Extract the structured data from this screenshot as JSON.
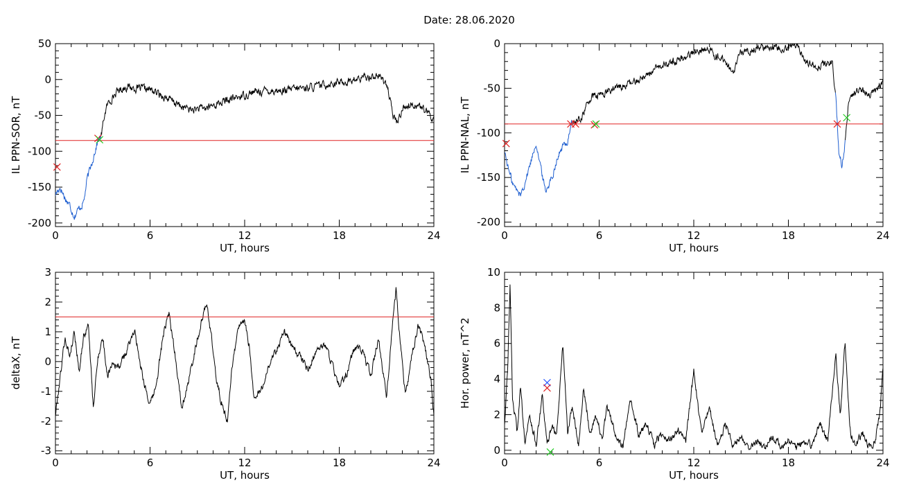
{
  "figure": {
    "title": "Date:  28.06.2020"
  },
  "colors": {
    "background": "#ffffff",
    "axis": "#000000",
    "trace": "#000000",
    "event_trace": "#1f5fd0",
    "threshold": "#e02020",
    "marker_red": "#e02020",
    "marker_green": "#22cc22",
    "marker_blue": "#2050ff"
  },
  "chart_data": [
    {
      "type": "line",
      "id": "il-ppn-sor",
      "xlabel": "UT, hours",
      "ylabel": "IL PPN-SOR, nT",
      "xlim": [
        0,
        24
      ],
      "ylim": [
        -205,
        50
      ],
      "xticks": [
        0,
        6,
        12,
        18,
        24
      ],
      "yticks": [
        -200,
        -150,
        -100,
        -50,
        0,
        50
      ],
      "threshold": -85,
      "anchors": [
        [
          0,
          -160
        ],
        [
          0.3,
          -150
        ],
        [
          0.6,
          -165
        ],
        [
          0.9,
          -175
        ],
        [
          1.2,
          -190
        ],
        [
          1.5,
          -180
        ],
        [
          1.8,
          -170
        ],
        [
          2.0,
          -140
        ],
        [
          2.2,
          -125
        ],
        [
          2.5,
          -100
        ],
        [
          2.7,
          -85
        ],
        [
          2.9,
          -80
        ],
        [
          3.1,
          -50
        ],
        [
          3.3,
          -35
        ],
        [
          3.6,
          -25
        ],
        [
          4.0,
          -15
        ],
        [
          4.5,
          -10
        ],
        [
          5.0,
          -12
        ],
        [
          6.0,
          -14
        ],
        [
          7.0,
          -25
        ],
        [
          8.0,
          -38
        ],
        [
          8.6,
          -42
        ],
        [
          9.5,
          -40
        ],
        [
          10.5,
          -32
        ],
        [
          11.5,
          -25
        ],
        [
          12.5,
          -18
        ],
        [
          13.5,
          -15
        ],
        [
          14.5,
          -16
        ],
        [
          15.5,
          -12
        ],
        [
          16.5,
          -10
        ],
        [
          17.5,
          -5
        ],
        [
          18.5,
          -3
        ],
        [
          19.5,
          2
        ],
        [
          20.0,
          5
        ],
        [
          20.5,
          5
        ],
        [
          21.0,
          -5
        ],
        [
          21.4,
          -50
        ],
        [
          21.7,
          -60
        ],
        [
          22.0,
          -40
        ],
        [
          22.5,
          -35
        ],
        [
          23.0,
          -35
        ],
        [
          23.5,
          -45
        ],
        [
          24.0,
          -55
        ]
      ],
      "event_segments": [
        [
          0,
          2.9
        ]
      ],
      "markers": [
        {
          "x": 2.7,
          "y": -82,
          "color": "marker_red"
        },
        {
          "x": 2.8,
          "y": -84,
          "color": "marker_green"
        },
        {
          "x": 0.1,
          "y": -122,
          "color": "marker_red"
        }
      ]
    },
    {
      "type": "line",
      "id": "il-ppn-nal",
      "xlabel": "UT, hours",
      "ylabel": "IL PPN-NAL, nT",
      "xlim": [
        0,
        24
      ],
      "ylim": [
        -205,
        0
      ],
      "xticks": [
        0,
        6,
        12,
        18,
        24
      ],
      "yticks": [
        -200,
        -150,
        -100,
        -50,
        0
      ],
      "threshold": -90,
      "anchors": [
        [
          0,
          -120
        ],
        [
          0.3,
          -145
        ],
        [
          0.6,
          -160
        ],
        [
          1.0,
          -170
        ],
        [
          1.3,
          -155
        ],
        [
          1.7,
          -130
        ],
        [
          2.0,
          -110
        ],
        [
          2.3,
          -140
        ],
        [
          2.6,
          -165
        ],
        [
          3.0,
          -150
        ],
        [
          3.3,
          -130
        ],
        [
          3.7,
          -115
        ],
        [
          4.0,
          -110
        ],
        [
          4.2,
          -90
        ],
        [
          4.5,
          -88
        ],
        [
          4.8,
          -85
        ],
        [
          5.2,
          -70
        ],
        [
          5.5,
          -60
        ],
        [
          6.0,
          -58
        ],
        [
          7.0,
          -50
        ],
        [
          8.0,
          -45
        ],
        [
          9.0,
          -35
        ],
        [
          10.0,
          -25
        ],
        [
          11.0,
          -18
        ],
        [
          12.0,
          -10
        ],
        [
          12.5,
          -5
        ],
        [
          13.0,
          -8
        ],
        [
          14.0,
          -20
        ],
        [
          14.5,
          -35
        ],
        [
          15.0,
          -10
        ],
        [
          16.0,
          -5
        ],
        [
          17.0,
          -3
        ],
        [
          18.0,
          -4
        ],
        [
          18.6,
          0
        ],
        [
          19.0,
          -20
        ],
        [
          20.0,
          -25
        ],
        [
          20.8,
          -20
        ],
        [
          21.0,
          -60
        ],
        [
          21.2,
          -120
        ],
        [
          21.4,
          -140
        ],
        [
          21.6,
          -110
        ],
        [
          21.8,
          -70
        ],
        [
          22.2,
          -55
        ],
        [
          22.7,
          -50
        ],
        [
          23.2,
          -60
        ],
        [
          23.6,
          -50
        ],
        [
          24.0,
          -45
        ]
      ],
      "event_segments": [
        [
          0,
          4.3
        ],
        [
          21.0,
          21.6
        ]
      ],
      "markers": [
        {
          "x": 4.2,
          "y": -90,
          "color": "marker_red"
        },
        {
          "x": 4.5,
          "y": -90,
          "color": "marker_red"
        },
        {
          "x": 5.7,
          "y": -91,
          "color": "marker_red"
        },
        {
          "x": 5.8,
          "y": -90,
          "color": "marker_green"
        },
        {
          "x": 21.1,
          "y": -90,
          "color": "marker_red"
        },
        {
          "x": 21.7,
          "y": -83,
          "color": "marker_green"
        },
        {
          "x": 0.1,
          "y": -112,
          "color": "marker_red"
        }
      ]
    },
    {
      "type": "line",
      "id": "deltax",
      "xlabel": "UT, hours",
      "ylabel": "deltaX, nT",
      "xlim": [
        0,
        24
      ],
      "ylim": [
        -3.1,
        3
      ],
      "xticks": [
        0,
        6,
        12,
        18,
        24
      ],
      "yticks": [
        -3,
        -2,
        -1,
        0,
        1,
        2,
        3
      ],
      "threshold": 1.5,
      "anchors": [
        [
          0,
          -1.8
        ],
        [
          0.3,
          -0.5
        ],
        [
          0.6,
          0.8
        ],
        [
          0.9,
          0.2
        ],
        [
          1.2,
          1.0
        ],
        [
          1.5,
          -0.3
        ],
        [
          1.8,
          0.9
        ],
        [
          2.1,
          1.2
        ],
        [
          2.4,
          -1.6
        ],
        [
          2.7,
          0.2
        ],
        [
          3.0,
          0.8
        ],
        [
          3.3,
          -0.5
        ],
        [
          3.6,
          0.0
        ],
        [
          4.0,
          -0.2
        ],
        [
          4.5,
          0.3
        ],
        [
          5.0,
          1.1
        ],
        [
          5.5,
          -0.4
        ],
        [
          6.0,
          -1.5
        ],
        [
          6.4,
          -0.8
        ],
        [
          6.8,
          0.8
        ],
        [
          7.2,
          1.6
        ],
        [
          7.6,
          0.2
        ],
        [
          8.0,
          -1.5
        ],
        [
          8.4,
          -0.8
        ],
        [
          8.8,
          0.3
        ],
        [
          9.2,
          1.2
        ],
        [
          9.6,
          2.0
        ],
        [
          9.9,
          0.8
        ],
        [
          10.2,
          -0.6
        ],
        [
          10.5,
          -1.3
        ],
        [
          10.9,
          -2.0
        ],
        [
          11.2,
          -0.2
        ],
        [
          11.6,
          1.2
        ],
        [
          12.0,
          1.3
        ],
        [
          12.3,
          0.5
        ],
        [
          12.6,
          -1.3
        ],
        [
          13.0,
          -1.0
        ],
        [
          13.5,
          -0.2
        ],
        [
          14.0,
          0.4
        ],
        [
          14.5,
          1.0
        ],
        [
          15.0,
          0.5
        ],
        [
          15.5,
          0.2
        ],
        [
          16.0,
          -0.3
        ],
        [
          16.5,
          0.3
        ],
        [
          17.0,
          0.6
        ],
        [
          17.5,
          0.0
        ],
        [
          18.0,
          -0.8
        ],
        [
          18.5,
          -0.4
        ],
        [
          19.0,
          0.5
        ],
        [
          19.5,
          0.3
        ],
        [
          20.0,
          -0.5
        ],
        [
          20.5,
          0.8
        ],
        [
          21.0,
          -1.2
        ],
        [
          21.4,
          1.5
        ],
        [
          21.6,
          2.4
        ],
        [
          21.9,
          0.5
        ],
        [
          22.2,
          -1.2
        ],
        [
          22.6,
          0.2
        ],
        [
          23.0,
          1.2
        ],
        [
          23.4,
          0.6
        ],
        [
          23.8,
          -0.6
        ],
        [
          24.0,
          -1.8
        ]
      ],
      "event_segments": [],
      "markers": []
    },
    {
      "type": "line",
      "id": "hor-power",
      "xlabel": "UT, hours",
      "ylabel": "Hor. power, nT^2",
      "xlim": [
        0,
        24
      ],
      "ylim": [
        -0.2,
        10
      ],
      "xticks": [
        0,
        6,
        12,
        18,
        24
      ],
      "yticks": [
        0,
        2,
        4,
        6,
        8,
        10
      ],
      "threshold": null,
      "anchors": [
        [
          0,
          1.5
        ],
        [
          0.2,
          4.5
        ],
        [
          0.35,
          9.5
        ],
        [
          0.5,
          3.0
        ],
        [
          0.8,
          1.0
        ],
        [
          1.0,
          3.5
        ],
        [
          1.3,
          0.5
        ],
        [
          1.6,
          2.0
        ],
        [
          2.0,
          0.3
        ],
        [
          2.4,
          3.0
        ],
        [
          2.7,
          0.2
        ],
        [
          3.0,
          1.5
        ],
        [
          3.3,
          0.8
        ],
        [
          3.7,
          6.0
        ],
        [
          4.0,
          1.0
        ],
        [
          4.3,
          2.5
        ],
        [
          4.7,
          0.3
        ],
        [
          5.0,
          3.5
        ],
        [
          5.4,
          1.0
        ],
        [
          5.8,
          2.0
        ],
        [
          6.2,
          0.5
        ],
        [
          6.5,
          2.5
        ],
        [
          7.0,
          1.0
        ],
        [
          7.5,
          0.2
        ],
        [
          8.0,
          2.8
        ],
        [
          8.5,
          0.8
        ],
        [
          9.0,
          1.5
        ],
        [
          9.5,
          0.3
        ],
        [
          10.0,
          1.0
        ],
        [
          10.5,
          0.5
        ],
        [
          11.0,
          1.2
        ],
        [
          11.5,
          0.6
        ],
        [
          12.0,
          4.5
        ],
        [
          12.5,
          0.8
        ],
        [
          13.0,
          2.5
        ],
        [
          13.5,
          0.2
        ],
        [
          14.0,
          1.5
        ],
        [
          14.5,
          0.3
        ],
        [
          15.0,
          0.8
        ],
        [
          15.5,
          0.1
        ],
        [
          16.0,
          0.5
        ],
        [
          16.5,
          0.1
        ],
        [
          17.0,
          0.8
        ],
        [
          17.5,
          0.2
        ],
        [
          18.0,
          0.6
        ],
        [
          18.5,
          0.1
        ],
        [
          19.0,
          0.5
        ],
        [
          19.5,
          0.2
        ],
        [
          20.0,
          1.5
        ],
        [
          20.5,
          0.5
        ],
        [
          21.0,
          5.5
        ],
        [
          21.3,
          2.0
        ],
        [
          21.6,
          6.2
        ],
        [
          21.9,
          1.0
        ],
        [
          22.3,
          0.3
        ],
        [
          22.7,
          1.0
        ],
        [
          23.1,
          0.2
        ],
        [
          23.5,
          0.5
        ],
        [
          23.8,
          2.0
        ],
        [
          24.0,
          4.5
        ]
      ],
      "event_segments": [],
      "markers": [
        {
          "x": 2.7,
          "y": 3.8,
          "color": "marker_blue"
        },
        {
          "x": 2.7,
          "y": 3.5,
          "color": "marker_red"
        },
        {
          "x": 2.9,
          "y": -0.1,
          "color": "marker_green"
        }
      ]
    }
  ]
}
